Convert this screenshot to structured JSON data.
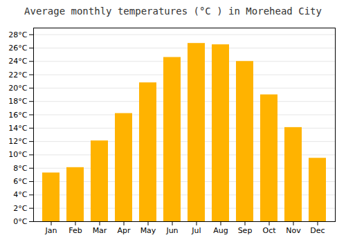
{
  "chart_data": {
    "type": "bar",
    "title": "Average monthly temperatures (°C ) in Morehead City",
    "categories": [
      "Jan",
      "Feb",
      "Mar",
      "Apr",
      "May",
      "Jun",
      "Jul",
      "Aug",
      "Sep",
      "Oct",
      "Nov",
      "Dec"
    ],
    "values": [
      7.3,
      8.1,
      12.1,
      16.2,
      20.8,
      24.6,
      26.7,
      26.5,
      24.0,
      19.0,
      14.1,
      9.5
    ],
    "color": "#FFB300",
    "ylim": [
      0,
      29
    ],
    "yticks": [
      {
        "value": 0,
        "label": "0°C"
      },
      {
        "value": 2,
        "label": "2°C"
      },
      {
        "value": 4,
        "label": "4°C"
      },
      {
        "value": 6,
        "label": "6°C"
      },
      {
        "value": 8,
        "label": "8°C"
      },
      {
        "value": 10,
        "label": "10°C"
      },
      {
        "value": 12,
        "label": "12°C"
      },
      {
        "value": 14,
        "label": "14°C"
      },
      {
        "value": 16,
        "label": "16°C"
      },
      {
        "value": 18,
        "label": "18°C"
      },
      {
        "value": 20,
        "label": "20°C"
      },
      {
        "value": 22,
        "label": "22°C"
      },
      {
        "value": 24,
        "label": "24°C"
      },
      {
        "value": 26,
        "label": "26°C"
      },
      {
        "value": 28,
        "label": "28°C"
      }
    ],
    "grid": true
  }
}
